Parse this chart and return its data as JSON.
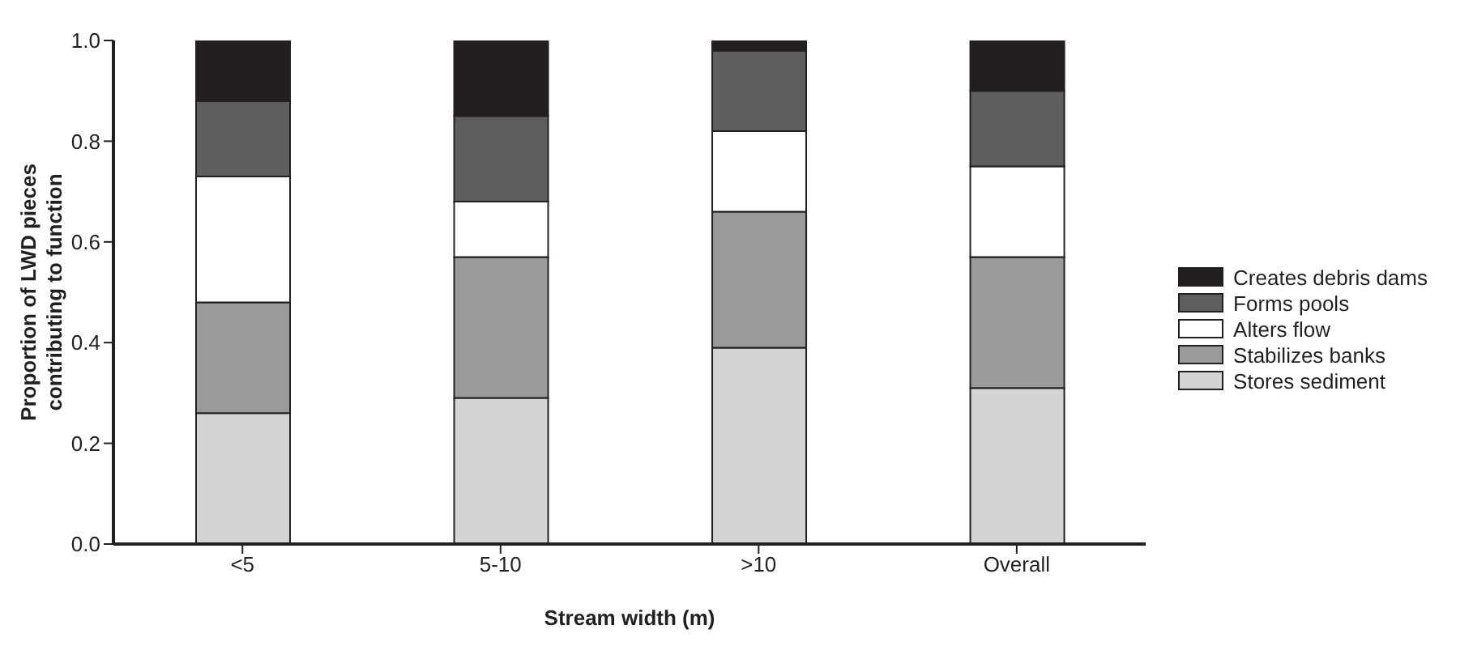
{
  "chart_data": {
    "type": "bar",
    "stacked": true,
    "xlabel": "Stream width (m)",
    "ylabel": "Proportion of LWD pieces contributing to function",
    "categories": [
      "<5",
      "5-10",
      ">10",
      "Overall"
    ],
    "series": [
      {
        "name": "Stores sediment",
        "color": "#d4d4d4",
        "values": [
          0.26,
          0.29,
          0.39,
          0.31
        ]
      },
      {
        "name": "Stabilizes banks",
        "color": "#9a9a9a",
        "values": [
          0.22,
          0.28,
          0.27,
          0.26
        ]
      },
      {
        "name": "Alters flow",
        "color": "#ffffff",
        "values": [
          0.25,
          0.11,
          0.16,
          0.18
        ]
      },
      {
        "name": "Forms pools",
        "color": "#5e5e5e",
        "values": [
          0.15,
          0.17,
          0.16,
          0.15
        ]
      },
      {
        "name": "Creates debris dams",
        "color": "#231f20",
        "values": [
          0.12,
          0.15,
          0.02,
          0.1
        ]
      }
    ],
    "ylim": [
      0,
      1
    ],
    "yticks": [
      {
        "value": 0,
        "label": "0.0"
      },
      {
        "value": 0.2,
        "label": "0.2"
      },
      {
        "value": 0.4,
        "label": "0.4"
      },
      {
        "value": 0.6,
        "label": "0.6"
      },
      {
        "value": 0.8,
        "label": "0.8"
      },
      {
        "value": 1,
        "label": "1.0"
      }
    ],
    "legend": "right",
    "grid": false
  }
}
